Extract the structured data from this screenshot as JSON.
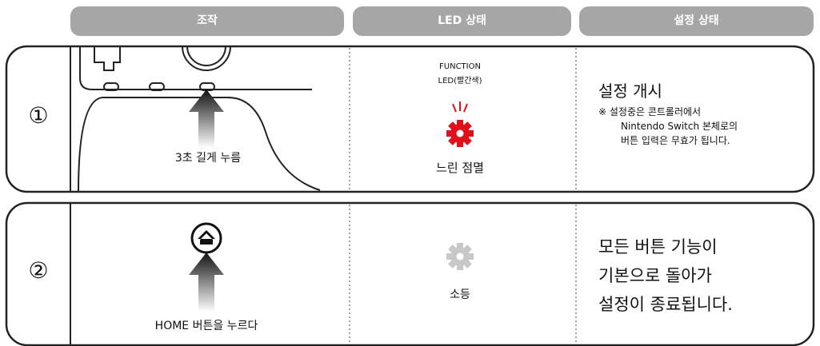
{
  "header": {
    "columns": [
      "조작",
      "LED 상태",
      "설정 상태"
    ]
  },
  "rows": [
    {
      "number": "①",
      "operation": "3초 길게 누름",
      "led_label": [
        "FUNCTION",
        "LED(빨간색)"
      ],
      "led_state": "느린 점멸",
      "setting": [
        "설정 개시"
      ],
      "note": [
        "※ 설정중은 콘트롤러에서",
        "Nintendo Switch 본체로의",
        "버튼 입력은 무효가 됩니다."
      ]
    },
    {
      "number": "②",
      "operation": "HOME 버튼을 누르다",
      "led_state": "소등",
      "setting": [
        "모든 버튼 기능이",
        "기본으로 돌아가",
        "설정이 종료됩니다."
      ]
    }
  ]
}
